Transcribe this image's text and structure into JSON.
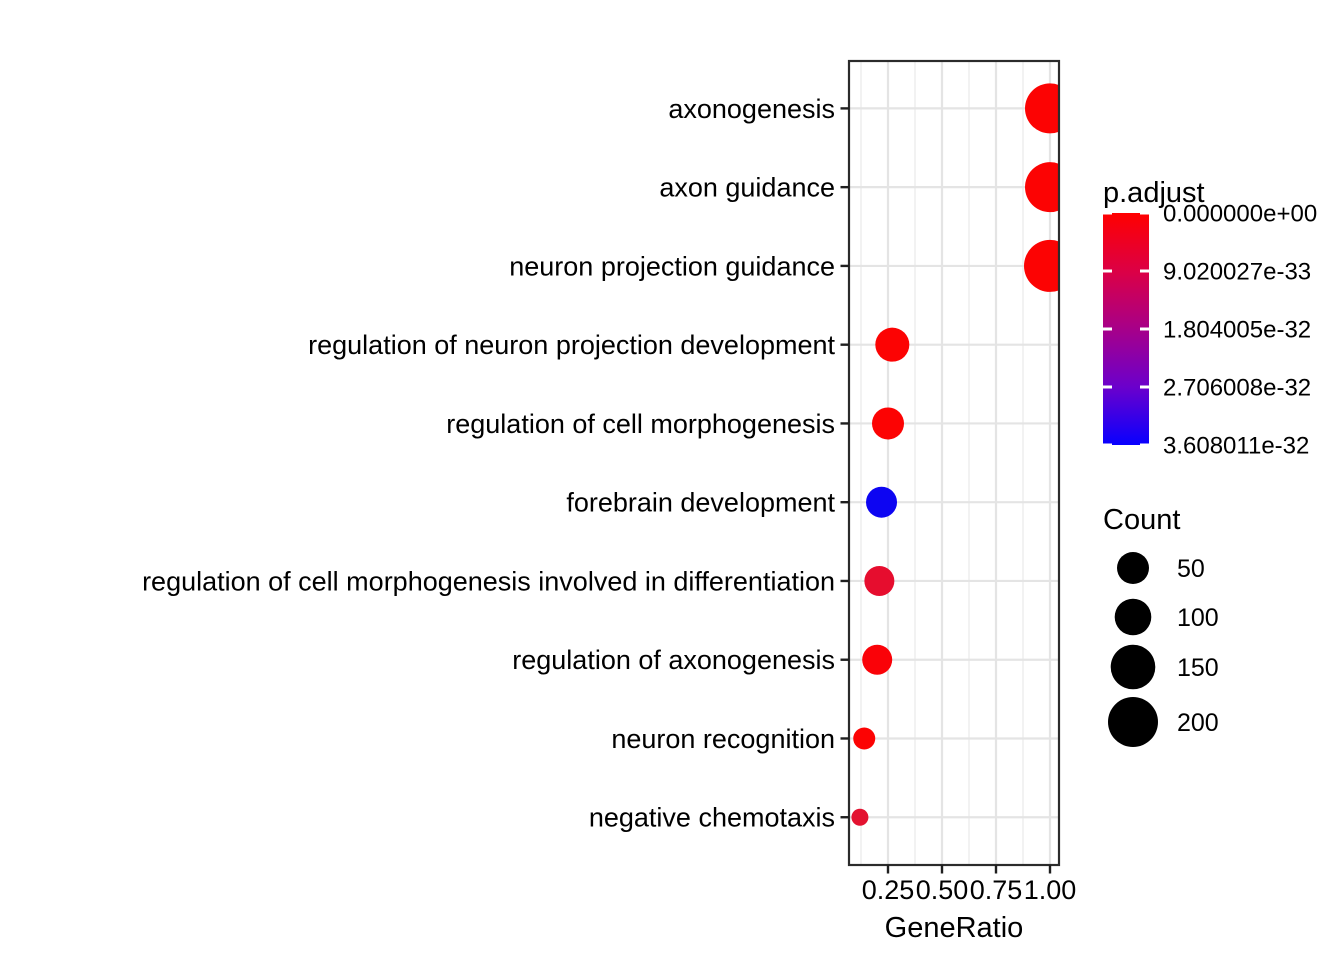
{
  "chart_data": {
    "type": "scatter",
    "subtype": "enrichment-dotplot",
    "title": "",
    "xlabel": "GeneRatio",
    "x_tick_labels": [
      "0.25",
      "0.50",
      "0.75",
      "1.00"
    ],
    "x_tick_values": [
      0.25,
      0.5,
      0.75,
      1.0
    ],
    "x_minor_values": [
      0.125,
      0.375,
      0.625,
      0.875
    ],
    "xlim": [
      0.07,
      1.04
    ],
    "grid": true,
    "legend_position": "right",
    "categories": [
      "axonogenesis",
      "axon guidance",
      "neuron projection guidance",
      "regulation of neuron projection development",
      "regulation of cell morphogenesis",
      "forebrain development",
      "regulation of cell morphogenesis involved in differentiation",
      "regulation of axonogenesis",
      "neuron recognition",
      "negative chemotaxis"
    ],
    "points": [
      {
        "term": "axonogenesis",
        "gene_ratio": 1.0,
        "count": 200,
        "p_adjust": 0,
        "color": "#FC0303",
        "radius_px": 25
      },
      {
        "term": "axon guidance",
        "gene_ratio": 1.0,
        "count": 200,
        "p_adjust": 0,
        "color": "#FC0303",
        "radius_px": 25
      },
      {
        "term": "neuron projection guidance",
        "gene_ratio": 1.0,
        "count": 210,
        "p_adjust": 0,
        "color": "#FC0303",
        "radius_px": 26
      },
      {
        "term": "regulation of neuron projection development",
        "gene_ratio": 0.27,
        "count": 63,
        "p_adjust": 1e-34,
        "color": "#FC0303",
        "radius_px": 17
      },
      {
        "term": "regulation of cell morphogenesis",
        "gene_ratio": 0.25,
        "count": 55,
        "p_adjust": 2e-34,
        "color": "#FC0303",
        "radius_px": 16
      },
      {
        "term": "forebrain development",
        "gene_ratio": 0.22,
        "count": 48,
        "p_adjust": 3.608e-32,
        "color": "#0D05F2",
        "radius_px": 15.5
      },
      {
        "term": "regulation of cell morphogenesis involved in differentiation",
        "gene_ratio": 0.21,
        "count": 45,
        "p_adjust": 4e-33,
        "color": "#E60D2E",
        "radius_px": 15
      },
      {
        "term": "regulation of axonogenesis",
        "gene_ratio": 0.2,
        "count": 45,
        "p_adjust": 1e-33,
        "color": "#FA0208",
        "radius_px": 15
      },
      {
        "term": "neuron recognition",
        "gene_ratio": 0.14,
        "count": 22,
        "p_adjust": 5e-34,
        "color": "#FC0303",
        "radius_px": 11
      },
      {
        "term": "negative chemotaxis",
        "gene_ratio": 0.12,
        "count": 12,
        "p_adjust": 4e-33,
        "color": "#E31230",
        "radius_px": 8.5
      }
    ],
    "color_legend": {
      "title": "p.adjust",
      "tick_labels": [
        "0.000000e+00",
        "9.020027e-33",
        "1.804005e-32",
        "2.706008e-32",
        "3.608011e-32"
      ],
      "gradient_stops": [
        "#FF0000",
        "#DC0045",
        "#A70089",
        "#6B00CC",
        "#0800FF"
      ]
    },
    "size_legend": {
      "title": "Count",
      "entries": [
        {
          "label": "50",
          "radius_px": 16
        },
        {
          "label": "100",
          "radius_px": 18.3
        },
        {
          "label": "150",
          "radius_px": 22.3
        },
        {
          "label": "200",
          "radius_px": 25
        }
      ],
      "color": "#000000"
    }
  },
  "colors": {
    "page_bg": "#FFFFFF",
    "panel_bg": "#FFFFFF",
    "grid_major": "#E4E4E4",
    "grid_minor": "#EFEFEF",
    "panel_border": "#2B2B2B",
    "tick": "#1F1F1F",
    "text": "#000000"
  }
}
